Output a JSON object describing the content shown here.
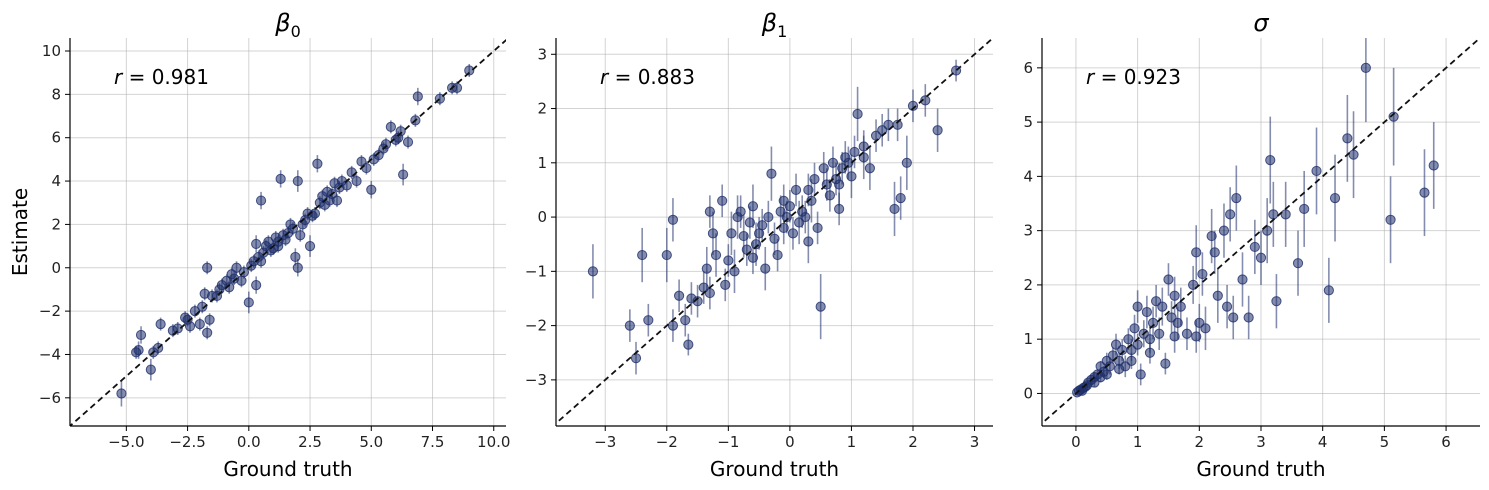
{
  "chart_data": [
    {
      "type": "scatter",
      "title_symbol": "β",
      "title_subscript": "0",
      "xlabel": "Ground truth",
      "ylabel": "Estimate",
      "xlim": [
        -7.3,
        10.5
      ],
      "ylim": [
        -7.3,
        10.6
      ],
      "xticks": [
        -5.0,
        -2.5,
        0.0,
        2.5,
        5.0,
        7.5,
        10.0
      ],
      "xtick_labels": [
        "−5.0",
        "−2.5",
        "0.0",
        "2.5",
        "5.0",
        "7.5",
        "10.0"
      ],
      "yticks": [
        -6,
        -4,
        -2,
        0,
        2,
        4,
        6,
        8,
        10
      ],
      "ytick_labels": [
        "−6",
        "−4",
        "−2",
        "0",
        "2",
        "4",
        "6",
        "8",
        "10"
      ],
      "annotation": {
        "var": "r",
        "text": " = 0.981"
      },
      "grid": true,
      "identity_line": true,
      "points": [
        [
          -5.2,
          -5.8,
          0.6
        ],
        [
          -4.6,
          -3.9,
          0.3
        ],
        [
          -4.5,
          -3.8,
          0.4
        ],
        [
          -4.4,
          -3.1,
          0.4
        ],
        [
          -4.0,
          -4.7,
          0.5
        ],
        [
          -3.9,
          -3.9,
          0.3
        ],
        [
          -3.7,
          -3.7,
          0.3
        ],
        [
          -3.6,
          -2.6,
          0.3
        ],
        [
          -3.1,
          -2.9,
          0.3
        ],
        [
          -2.9,
          -2.8,
          0.3
        ],
        [
          -2.5,
          -2.4,
          0.3
        ],
        [
          -2.4,
          -2.7,
          0.3
        ],
        [
          -2.2,
          -2.0,
          0.3
        ],
        [
          -2.0,
          -2.6,
          0.3
        ],
        [
          -1.9,
          -1.8,
          0.3
        ],
        [
          -1.8,
          -1.2,
          0.3
        ],
        [
          -1.7,
          -3.0,
          0.3
        ],
        [
          -1.6,
          -2.4,
          0.3
        ],
        [
          -1.5,
          -1.3,
          0.3
        ],
        [
          -1.3,
          -1.3,
          0.3
        ],
        [
          -1.2,
          -1.0,
          0.3
        ],
        [
          -1.1,
          -0.8,
          0.3
        ],
        [
          -0.9,
          -0.6,
          0.3
        ],
        [
          -0.8,
          -0.9,
          0.3
        ],
        [
          -0.7,
          -0.3,
          0.3
        ],
        [
          -0.6,
          -0.5,
          0.3
        ],
        [
          -0.5,
          0.0,
          0.3
        ],
        [
          -0.3,
          -0.6,
          0.3
        ],
        [
          -0.2,
          -0.2,
          0.3
        ],
        [
          -1.7,
          0.0,
          0.3
        ],
        [
          0.0,
          -1.6,
          0.5
        ],
        [
          0.1,
          0.1,
          0.3
        ],
        [
          0.2,
          0.3,
          0.3
        ],
        [
          0.3,
          -0.8,
          0.4
        ],
        [
          0.3,
          1.1,
          0.4
        ],
        [
          0.4,
          0.5,
          0.3
        ],
        [
          0.5,
          3.1,
          0.4
        ],
        [
          0.6,
          0.7,
          0.3
        ],
        [
          0.7,
          1.0,
          0.3
        ],
        [
          0.8,
          1.2,
          0.3
        ],
        [
          0.9,
          0.8,
          0.3
        ],
        [
          1.0,
          0.9,
          0.3
        ],
        [
          1.1,
          1.4,
          0.3
        ],
        [
          1.2,
          1.2,
          0.3
        ],
        [
          1.3,
          4.1,
          0.4
        ],
        [
          1.4,
          1.5,
          0.3
        ],
        [
          1.5,
          1.3,
          0.3
        ],
        [
          1.6,
          1.6,
          0.3
        ],
        [
          1.7,
          2.0,
          0.3
        ],
        [
          1.8,
          1.8,
          0.3
        ],
        [
          1.9,
          0.5,
          0.4
        ],
        [
          2.0,
          0.0,
          0.4
        ],
        [
          2.0,
          4.0,
          0.5
        ],
        [
          2.1,
          1.5,
          0.3
        ],
        [
          2.2,
          2.0,
          0.3
        ],
        [
          2.3,
          2.2,
          0.3
        ],
        [
          2.4,
          2.5,
          0.3
        ],
        [
          2.5,
          1.0,
          0.5
        ],
        [
          2.6,
          2.4,
          0.3
        ],
        [
          2.8,
          4.8,
          0.4
        ],
        [
          2.9,
          3.0,
          0.3
        ],
        [
          3.0,
          3.3,
          0.3
        ],
        [
          3.1,
          2.9,
          0.3
        ],
        [
          3.2,
          3.5,
          0.3
        ],
        [
          3.3,
          3.1,
          0.3
        ],
        [
          3.4,
          3.4,
          0.3
        ],
        [
          3.5,
          3.9,
          0.3
        ],
        [
          3.6,
          3.1,
          0.3
        ],
        [
          3.8,
          4.0,
          0.3
        ],
        [
          4.0,
          3.8,
          0.3
        ],
        [
          4.2,
          4.4,
          0.3
        ],
        [
          4.4,
          4.0,
          0.3
        ],
        [
          4.6,
          4.9,
          0.3
        ],
        [
          4.8,
          4.6,
          0.3
        ],
        [
          5.0,
          3.6,
          0.4
        ],
        [
          5.1,
          5.0,
          0.3
        ],
        [
          5.3,
          5.2,
          0.3
        ],
        [
          5.5,
          5.5,
          0.3
        ],
        [
          5.6,
          5.7,
          0.3
        ],
        [
          5.8,
          6.5,
          0.3
        ],
        [
          6.0,
          5.9,
          0.3
        ],
        [
          6.1,
          6.0,
          0.3
        ],
        [
          6.2,
          6.3,
          0.3
        ],
        [
          6.3,
          4.3,
          0.5
        ],
        [
          6.5,
          5.8,
          0.3
        ],
        [
          6.8,
          6.8,
          0.3
        ],
        [
          6.9,
          7.9,
          0.4
        ],
        [
          7.8,
          7.8,
          0.3
        ],
        [
          8.3,
          8.3,
          0.3
        ],
        [
          8.5,
          8.3,
          0.3
        ],
        [
          9.0,
          9.1,
          0.3
        ],
        [
          3.7,
          3.7,
          0.3
        ],
        [
          2.7,
          2.5,
          0.3
        ],
        [
          1.2,
          1.0,
          0.3
        ],
        [
          0.5,
          0.3,
          0.3
        ],
        [
          -2.6,
          -2.3,
          0.3
        ]
      ]
    },
    {
      "type": "scatter",
      "title_symbol": "β",
      "title_subscript": "1",
      "xlabel": "Ground truth",
      "ylabel": "",
      "xlim": [
        -3.8,
        3.3
      ],
      "ylim": [
        -3.85,
        3.3
      ],
      "xticks": [
        -3,
        -2,
        -1,
        0,
        1,
        2,
        3
      ],
      "xtick_labels": [
        "−3",
        "−2",
        "−1",
        "0",
        "1",
        "2",
        "3"
      ],
      "yticks": [
        -3,
        -2,
        -1,
        0,
        1,
        2,
        3
      ],
      "ytick_labels": [
        "−3",
        "−2",
        "−1",
        "0",
        "1",
        "2",
        "3"
      ],
      "annotation": {
        "var": "r",
        "text": " = 0.883"
      },
      "grid": true,
      "identity_line": true,
      "points": [
        [
          -3.2,
          -1.0,
          0.5
        ],
        [
          -2.6,
          -2.0,
          0.3
        ],
        [
          -2.5,
          -2.6,
          0.3
        ],
        [
          -2.4,
          -0.7,
          0.5
        ],
        [
          -2.3,
          -1.9,
          0.3
        ],
        [
          -2.0,
          -0.7,
          0.5
        ],
        [
          -1.9,
          -2.0,
          0.3
        ],
        [
          -1.9,
          -0.05,
          0.4
        ],
        [
          -1.8,
          -1.45,
          0.3
        ],
        [
          -1.7,
          -1.9,
          0.3
        ],
        [
          -1.65,
          -2.35,
          0.2
        ],
        [
          -1.6,
          -1.5,
          0.3
        ],
        [
          -1.5,
          -1.55,
          0.3
        ],
        [
          -1.4,
          -1.3,
          0.3
        ],
        [
          -1.35,
          -0.95,
          0.4
        ],
        [
          -1.3,
          0.1,
          0.3
        ],
        [
          -1.25,
          -0.3,
          0.4
        ],
        [
          -1.2,
          -0.7,
          0.4
        ],
        [
          -1.1,
          0.3,
          0.3
        ],
        [
          -1.05,
          -1.25,
          0.3
        ],
        [
          -1.0,
          -0.8,
          0.3
        ],
        [
          -0.95,
          -0.3,
          0.4
        ],
        [
          -0.9,
          -1.0,
          0.4
        ],
        [
          -0.85,
          0.0,
          0.4
        ],
        [
          -0.8,
          0.1,
          0.3
        ],
        [
          -0.75,
          -0.35,
          0.4
        ],
        [
          -0.7,
          -0.6,
          0.3
        ],
        [
          -0.65,
          -0.1,
          0.3
        ],
        [
          -0.6,
          0.2,
          0.4
        ],
        [
          -0.55,
          -0.5,
          0.4
        ],
        [
          -0.5,
          -0.3,
          0.3
        ],
        [
          -0.45,
          -0.15,
          0.3
        ],
        [
          -0.4,
          -0.95,
          0.4
        ],
        [
          -0.35,
          0.0,
          0.3
        ],
        [
          -0.3,
          0.8,
          0.5
        ],
        [
          -0.25,
          -0.4,
          0.3
        ],
        [
          -0.2,
          -0.7,
          0.3
        ],
        [
          -0.15,
          0.1,
          0.3
        ],
        [
          -0.1,
          -0.2,
          0.3
        ],
        [
          -0.05,
          0.0,
          0.3
        ],
        [
          0.0,
          0.2,
          0.3
        ],
        [
          0.05,
          -0.3,
          0.3
        ],
        [
          0.1,
          0.5,
          0.3
        ],
        [
          0.15,
          -0.1,
          0.4
        ],
        [
          0.2,
          0.1,
          0.3
        ],
        [
          0.25,
          0.0,
          0.3
        ],
        [
          0.3,
          0.5,
          0.3
        ],
        [
          0.35,
          0.3,
          0.4
        ],
        [
          0.4,
          0.7,
          0.3
        ],
        [
          0.45,
          -0.2,
          0.3
        ],
        [
          0.5,
          -1.65,
          0.6
        ],
        [
          0.55,
          0.9,
          0.3
        ],
        [
          0.6,
          0.6,
          0.3
        ],
        [
          0.65,
          0.4,
          0.3
        ],
        [
          0.7,
          1.0,
          0.3
        ],
        [
          0.75,
          0.7,
          0.3
        ],
        [
          0.8,
          0.6,
          0.4
        ],
        [
          0.85,
          0.9,
          0.3
        ],
        [
          0.9,
          1.1,
          0.3
        ],
        [
          0.95,
          1.0,
          0.3
        ],
        [
          1.0,
          0.75,
          0.4
        ],
        [
          1.05,
          1.2,
          0.3
        ],
        [
          1.1,
          1.9,
          0.5
        ],
        [
          1.2,
          1.3,
          0.3
        ],
        [
          1.3,
          0.9,
          0.4
        ],
        [
          1.4,
          1.5,
          0.3
        ],
        [
          1.5,
          1.6,
          0.3
        ],
        [
          1.6,
          1.7,
          0.3
        ],
        [
          1.7,
          0.15,
          0.5
        ],
        [
          1.75,
          1.7,
          0.3
        ],
        [
          1.8,
          0.35,
          0.4
        ],
        [
          1.9,
          1.0,
          0.5
        ],
        [
          2.0,
          2.05,
          0.3
        ],
        [
          2.2,
          2.15,
          0.3
        ],
        [
          2.4,
          1.6,
          0.4
        ],
        [
          2.7,
          2.7,
          0.2
        ],
        [
          -0.6,
          -0.75,
          0.3
        ],
        [
          0.3,
          -0.45,
          0.4
        ],
        [
          1.2,
          1.1,
          0.4
        ],
        [
          -1.3,
          -1.4,
          0.3
        ],
        [
          -0.1,
          0.3,
          0.3
        ],
        [
          0.8,
          0.15,
          0.3
        ]
      ]
    },
    {
      "type": "scatter",
      "title_symbol": "σ",
      "title_subscript": "",
      "xlabel": "Ground truth",
      "ylabel": "",
      "xlim": [
        -0.55,
        6.55
      ],
      "ylim": [
        -0.6,
        6.55
      ],
      "xticks": [
        0,
        1,
        2,
        3,
        4,
        5,
        6
      ],
      "xtick_labels": [
        "0",
        "1",
        "2",
        "3",
        "4",
        "5",
        "6"
      ],
      "yticks": [
        0,
        1,
        2,
        3,
        4,
        5,
        6
      ],
      "ytick_labels": [
        "0",
        "1",
        "2",
        "3",
        "4",
        "5",
        "6"
      ],
      "annotation": {
        "var": "r",
        "text": " = 0.923"
      },
      "grid": true,
      "identity_line": true,
      "points": [
        [
          0.02,
          0.02,
          0.05
        ],
        [
          0.05,
          0.05,
          0.05
        ],
        [
          0.08,
          0.07,
          0.05
        ],
        [
          0.1,
          0.05,
          0.05
        ],
        [
          0.12,
          0.1,
          0.05
        ],
        [
          0.15,
          0.12,
          0.05
        ],
        [
          0.18,
          0.15,
          0.05
        ],
        [
          0.2,
          0.2,
          0.05
        ],
        [
          0.25,
          0.25,
          0.08
        ],
        [
          0.3,
          0.3,
          0.08
        ],
        [
          0.35,
          0.35,
          0.1
        ],
        [
          0.4,
          0.5,
          0.1
        ],
        [
          0.45,
          0.4,
          0.1
        ],
        [
          0.5,
          0.6,
          0.15
        ],
        [
          0.55,
          0.5,
          0.15
        ],
        [
          0.6,
          0.7,
          0.15
        ],
        [
          0.65,
          0.9,
          0.2
        ],
        [
          0.7,
          0.6,
          0.15
        ],
        [
          0.75,
          0.8,
          0.2
        ],
        [
          0.8,
          0.5,
          0.2
        ],
        [
          0.85,
          1.0,
          0.2
        ],
        [
          0.9,
          0.8,
          0.2
        ],
        [
          0.95,
          1.2,
          0.25
        ],
        [
          1.0,
          0.9,
          0.2
        ],
        [
          1.0,
          1.6,
          0.3
        ],
        [
          1.05,
          0.35,
          0.2
        ],
        [
          1.1,
          1.1,
          0.25
        ],
        [
          1.15,
          1.5,
          0.3
        ],
        [
          1.2,
          1.0,
          0.25
        ],
        [
          1.25,
          1.3,
          0.3
        ],
        [
          1.3,
          1.7,
          0.3
        ],
        [
          1.35,
          1.1,
          0.3
        ],
        [
          1.4,
          1.6,
          0.35
        ],
        [
          1.45,
          0.55,
          0.2
        ],
        [
          1.5,
          2.1,
          0.3
        ],
        [
          1.55,
          1.4,
          0.3
        ],
        [
          1.6,
          1.8,
          0.35
        ],
        [
          1.65,
          1.3,
          0.3
        ],
        [
          1.7,
          1.6,
          0.35
        ],
        [
          1.8,
          1.1,
          0.3
        ],
        [
          1.9,
          2.0,
          0.35
        ],
        [
          1.95,
          2.6,
          0.5
        ],
        [
          2.0,
          1.3,
          0.35
        ],
        [
          2.05,
          2.2,
          0.4
        ],
        [
          2.1,
          1.2,
          0.4
        ],
        [
          2.2,
          2.9,
          0.5
        ],
        [
          2.25,
          2.6,
          0.4
        ],
        [
          2.3,
          1.8,
          0.5
        ],
        [
          2.4,
          3.0,
          0.5
        ],
        [
          2.45,
          1.6,
          0.4
        ],
        [
          2.5,
          3.3,
          0.5
        ],
        [
          2.55,
          1.4,
          0.4
        ],
        [
          2.6,
          3.6,
          0.6
        ],
        [
          2.7,
          2.1,
          0.5
        ],
        [
          2.8,
          1.4,
          0.4
        ],
        [
          2.9,
          2.7,
          0.5
        ],
        [
          3.0,
          2.5,
          0.5
        ],
        [
          3.1,
          3.0,
          0.6
        ],
        [
          3.15,
          4.3,
          0.8
        ],
        [
          3.2,
          3.3,
          0.6
        ],
        [
          3.25,
          1.7,
          0.5
        ],
        [
          3.4,
          3.3,
          0.6
        ],
        [
          3.6,
          2.4,
          0.6
        ],
        [
          3.7,
          3.4,
          0.7
        ],
        [
          3.9,
          4.1,
          0.8
        ],
        [
          4.1,
          1.9,
          0.6
        ],
        [
          4.2,
          3.6,
          0.8
        ],
        [
          4.4,
          4.7,
          0.8
        ],
        [
          4.5,
          4.4,
          0.8
        ],
        [
          4.7,
          6.0,
          1.0
        ],
        [
          5.1,
          3.2,
          0.8
        ],
        [
          5.15,
          5.1,
          0.9
        ],
        [
          5.65,
          3.7,
          0.8
        ],
        [
          5.8,
          4.2,
          0.8
        ],
        [
          0.5,
          0.35,
          0.1
        ],
        [
          0.7,
          0.45,
          0.1
        ],
        [
          0.3,
          0.2,
          0.08
        ],
        [
          0.9,
          0.6,
          0.15
        ],
        [
          1.2,
          0.75,
          0.2
        ],
        [
          0.4,
          0.3,
          0.1
        ],
        [
          1.6,
          1.05,
          0.3
        ],
        [
          1.95,
          1.05,
          0.3
        ]
      ]
    }
  ]
}
